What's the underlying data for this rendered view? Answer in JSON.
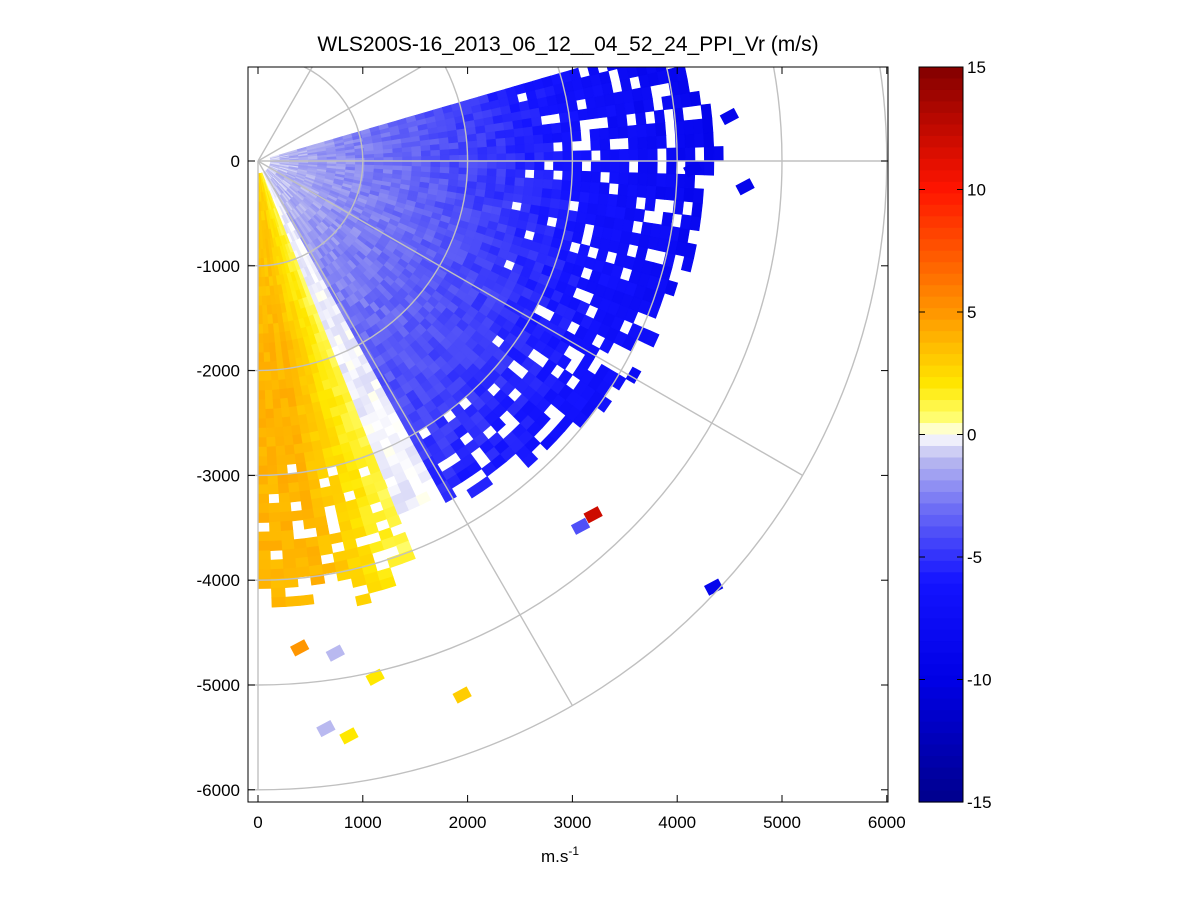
{
  "chart_data": {
    "type": "heatmap",
    "title": "WLS200S-16_2013_06_12__04_52_24_PPI_Vr (m/s)",
    "xlabel": "m.s-1",
    "ylabel": "",
    "xlim": [
      -100,
      6000
    ],
    "ylim": [
      -6100,
      900
    ],
    "xticks": [
      "0",
      "1000",
      "2000",
      "3000",
      "4000",
      "5000",
      "6000"
    ],
    "yticks": [
      "0",
      "-1000",
      "-2000",
      "-3000",
      "-4000",
      "-5000",
      "-6000"
    ],
    "colorbar": {
      "range": [
        -15,
        15
      ],
      "ticks": [
        "15",
        "10",
        "5",
        "0",
        "-5",
        "-10",
        "-15"
      ]
    },
    "polar_grid": {
      "ring_radii": [
        1000,
        2000,
        3000,
        4000,
        5000,
        6000
      ],
      "spoke_angles_deg": [
        0,
        -30,
        -60,
        -90,
        30,
        60
      ]
    },
    "scan": {
      "azimuth_range_deg": [
        -90,
        15
      ],
      "max_range": 4800
    },
    "outlier_cells": [
      {
        "x": 3200,
        "y": -3380,
        "v": 12
      },
      {
        "x": 3080,
        "y": -3490,
        "v": -4
      },
      {
        "x": 4350,
        "y": -4070,
        "v": -9
      },
      {
        "x": 4500,
        "y": 420,
        "v": -9
      },
      {
        "x": 4650,
        "y": -250,
        "v": -9
      },
      {
        "x": 4150,
        "y": -80,
        "v": -9
      },
      {
        "x": 400,
        "y": -4650,
        "v": 5
      },
      {
        "x": 740,
        "y": -4700,
        "v": -1
      },
      {
        "x": 1120,
        "y": -4930,
        "v": 2
      },
      {
        "x": 1950,
        "y": -5100,
        "v": 3
      },
      {
        "x": 650,
        "y": -5420,
        "v": -1
      },
      {
        "x": 870,
        "y": -5490,
        "v": 2
      }
    ],
    "grid": false,
    "legend": "none"
  }
}
